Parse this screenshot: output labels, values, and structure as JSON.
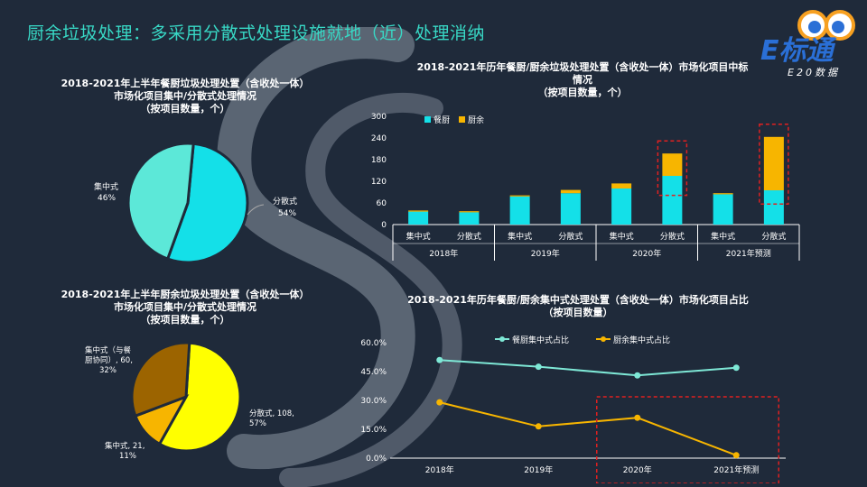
{
  "slide": {
    "title": "厨余垃圾处理：多采用分散式处理设施就地（近）处理消纳",
    "logo_text": "E标通",
    "logo_subtext": "E20数据"
  },
  "colors": {
    "background": "#1f2a3a",
    "title": "#38d9c6",
    "canteen": "#14e0e8",
    "kitchen": "#f7b500",
    "pie1_concentrated": "#5ce8d8",
    "pie1_distributed": "#14e0e8",
    "pie2_distributed": "#ffff00",
    "pie2_synergy": "#9c6400",
    "pie2_concentrated": "#f7b500",
    "line_canteen": "#7ee8d6",
    "line_kitchen": "#f7b500",
    "highlight": "#e02020"
  },
  "chart_data": [
    {
      "id": "pie1",
      "type": "pie",
      "title": "2018-2021年上半年餐厨垃圾处理处置（含收处一体）市场化项目集中/分散式处理情况（按项目数量，个）",
      "title_lines": [
        "2018-2021年上半年餐厨垃圾处理处置（含收处一体）",
        "市场化项目集中/分散式处理情况",
        "（按项目数量，个）"
      ],
      "slices": [
        {
          "label": "分散式",
          "percent_label": "54%",
          "value": 54
        },
        {
          "label": "集中式",
          "percent_label": "46%",
          "value": 46
        }
      ]
    },
    {
      "id": "bar",
      "type": "bar",
      "title": "2018-2021年历年餐厨/厨余垃圾处理处置（含收处一体）市场化项目中标情况（按项目数量，个）",
      "title_lines": [
        "2018-2021年历年餐厨/厨余垃圾处理处置（含收处一体）市场化项目中标",
        "情况",
        "（按项目数量，个）"
      ],
      "stacked": true,
      "groups": [
        "2018年",
        "2019年",
        "2020年",
        "2021年预测"
      ],
      "categories": [
        "集中式",
        "分散式",
        "集中式",
        "分散式",
        "集中式",
        "分散式",
        "集中式",
        "分散式"
      ],
      "series": [
        {
          "name": "餐厨",
          "values": [
            36,
            34,
            78,
            87,
            100,
            135,
            84,
            95
          ]
        },
        {
          "name": "厨余",
          "values": [
            3,
            3,
            3,
            9,
            14,
            62,
            3,
            148
          ]
        }
      ],
      "ylim": [
        0,
        300
      ],
      "yticks": [
        "300",
        "240",
        "180",
        "120",
        "60",
        "0"
      ],
      "highlighted": [
        "2020年 分散式",
        "2021年预测 分散式"
      ]
    },
    {
      "id": "pie2",
      "type": "pie",
      "title": "2018-2021年上半年厨余垃圾处理处置（含收处一体）市场化项目集中/分散式处理情况（按项目数量，个）",
      "title_lines": [
        "2018-2021年上半年厨余垃圾处理处置（含收处一体）",
        "市场化项目集中/分散式处理情况",
        "（按项目数量，个）"
      ],
      "slices": [
        {
          "label_lines": [
            "分散式, 108,",
            "57%"
          ],
          "value": 108
        },
        {
          "label_lines": [
            "集中式（与餐",
            "厨协同）, 60,",
            "32%"
          ],
          "value": 60
        },
        {
          "label_lines": [
            "集中式, 21,",
            "11%"
          ],
          "value": 21
        }
      ]
    },
    {
      "id": "line",
      "type": "line",
      "title": "2018-2021年历年餐厨/厨余集中式处理处置（含收处一体）市场化项目占比（按项目数量）",
      "title_lines": [
        "2018-2021年历年餐厨/厨余集中式处理处置（含收处一体）市场化项目占比",
        "（按项目数量）"
      ],
      "x": [
        "2018年",
        "2019年",
        "2020年",
        "2021年预测"
      ],
      "series": [
        {
          "name": "餐厨集中式占比",
          "values": [
            51.0,
            47.5,
            43.0,
            47.0
          ]
        },
        {
          "name": "厨余集中式占比",
          "values": [
            29.0,
            16.5,
            21.0,
            1.5
          ]
        }
      ],
      "ylim": [
        0,
        60
      ],
      "yticks": [
        "60.0%",
        "45.0%",
        "30.0%",
        "15.0%",
        "0.0%"
      ],
      "highlighted": [
        "2020年",
        "2021年预测"
      ]
    }
  ]
}
